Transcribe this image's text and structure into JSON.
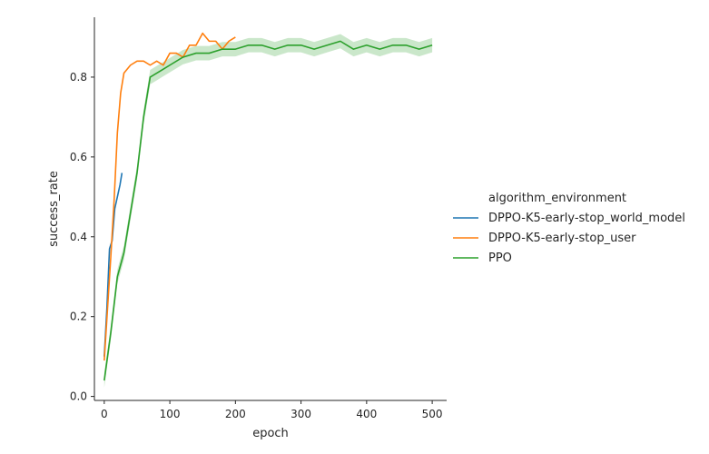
{
  "chart_data": {
    "type": "line",
    "xlabel": "epoch",
    "ylabel": "success_rate",
    "xlim": [
      -15,
      522
    ],
    "ylim": [
      -0.01,
      0.95
    ],
    "xticks": [
      0,
      100,
      200,
      300,
      400,
      500
    ],
    "yticks": [
      0.0,
      0.2,
      0.4,
      0.6,
      0.8
    ],
    "grid": false,
    "legend": {
      "title": "algorithm_environment",
      "placement": "right"
    },
    "series": [
      {
        "name": "DPPO-K5-early-stop_world_model",
        "color": "#1f77b4",
        "x": [
          0,
          4,
          8,
          12,
          16,
          20,
          24,
          27
        ],
        "y": [
          0.1,
          0.22,
          0.37,
          0.39,
          0.47,
          0.5,
          0.53,
          0.56
        ],
        "band": false
      },
      {
        "name": "DPPO-K5-early-stop_user",
        "color": "#ff7f0e",
        "x": [
          0,
          5,
          10,
          15,
          20,
          25,
          30,
          35,
          40,
          50,
          60,
          70,
          80,
          90,
          100,
          110,
          120,
          130,
          140,
          150,
          160,
          170,
          180,
          190,
          200
        ],
        "y": [
          0.09,
          0.22,
          0.35,
          0.49,
          0.66,
          0.76,
          0.81,
          0.82,
          0.83,
          0.84,
          0.84,
          0.83,
          0.84,
          0.83,
          0.86,
          0.86,
          0.85,
          0.88,
          0.88,
          0.91,
          0.89,
          0.89,
          0.87,
          0.89,
          0.9
        ],
        "band": false
      },
      {
        "name": "PPO",
        "color": "#2ca02c",
        "x": [
          0,
          10,
          20,
          30,
          40,
          50,
          60,
          70,
          80,
          90,
          100,
          120,
          140,
          160,
          180,
          200,
          220,
          240,
          260,
          280,
          300,
          320,
          340,
          360,
          380,
          400,
          420,
          440,
          460,
          480,
          500
        ],
        "y": [
          0.04,
          0.16,
          0.3,
          0.36,
          0.46,
          0.56,
          0.7,
          0.8,
          0.81,
          0.82,
          0.83,
          0.85,
          0.86,
          0.86,
          0.87,
          0.87,
          0.88,
          0.88,
          0.87,
          0.88,
          0.88,
          0.87,
          0.88,
          0.89,
          0.87,
          0.88,
          0.87,
          0.88,
          0.88,
          0.87,
          0.88
        ],
        "band": true,
        "band_halfwidth": 0.018
      }
    ]
  }
}
